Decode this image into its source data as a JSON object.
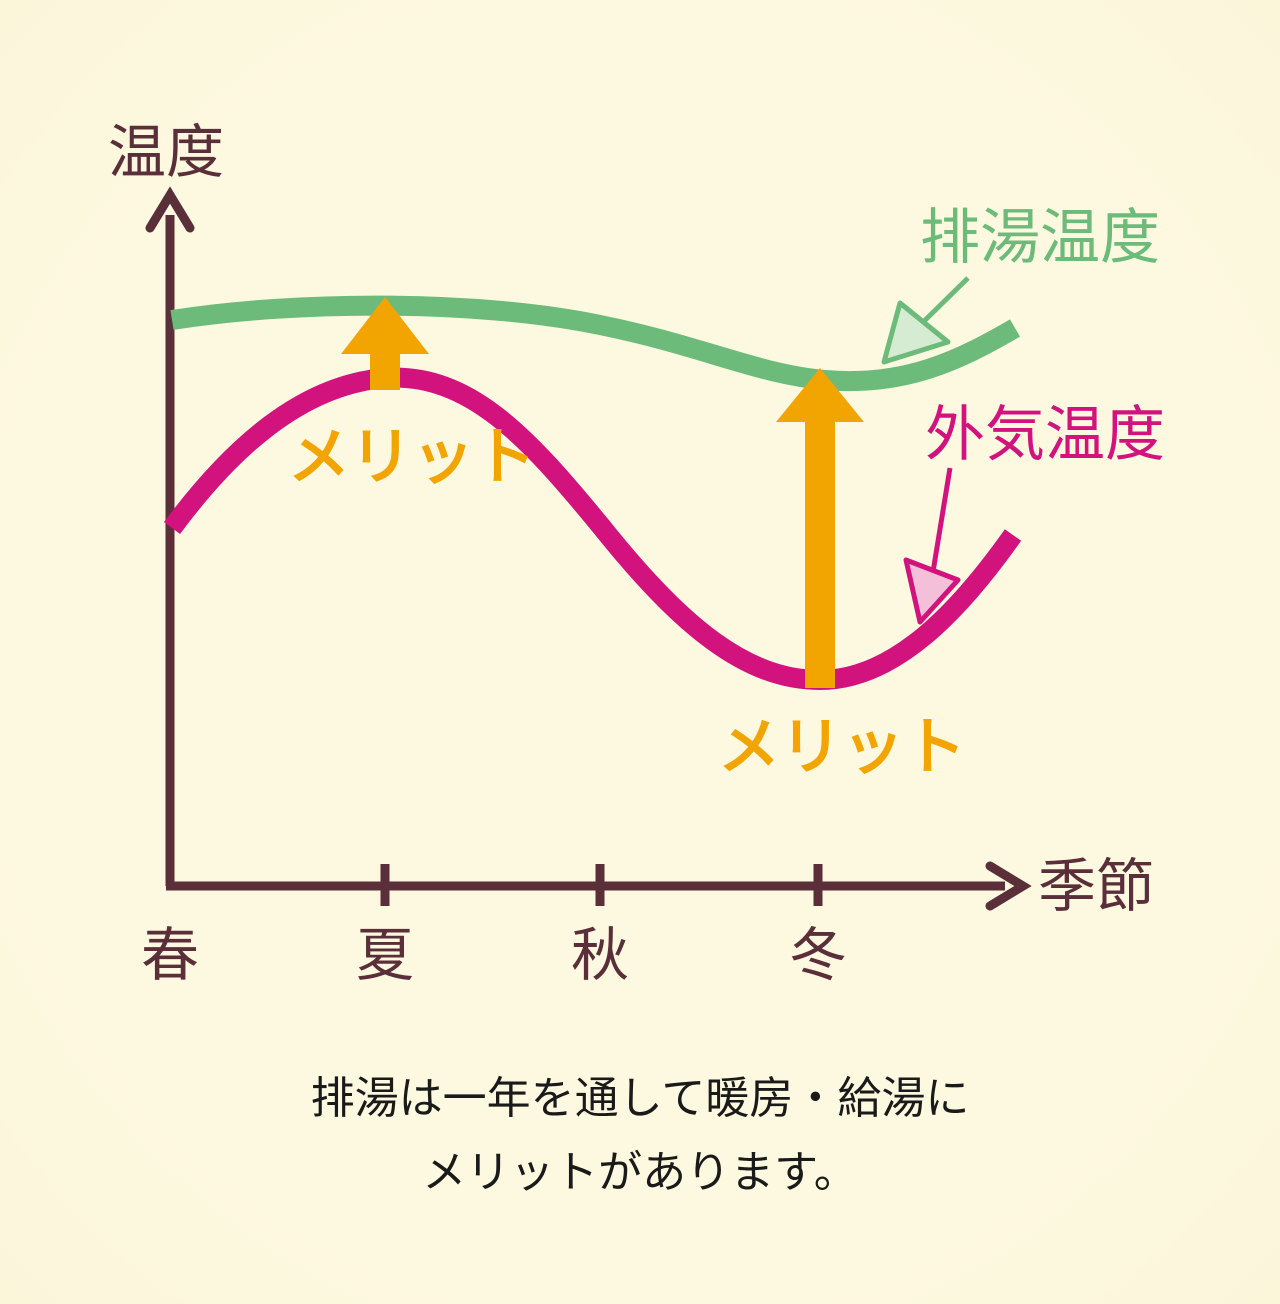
{
  "axes": {
    "y_label": "温度",
    "x_label": "季節"
  },
  "seasons": [
    "春",
    "夏",
    "秋",
    "冬"
  ],
  "curves": {
    "exhaust_label": "排湯温度",
    "outside_label": "外気温度"
  },
  "merit_labels": {
    "summer": "メリット",
    "winter": "メリット"
  },
  "caption": {
    "line1": "排湯は一年を通して暖房・給湯に",
    "line2": "メリットがあります。"
  },
  "colors": {
    "axis": "#5a2f3a",
    "exhaust": "#6cbb7a",
    "outside": "#d2137e",
    "merit": "#f2a500"
  }
}
